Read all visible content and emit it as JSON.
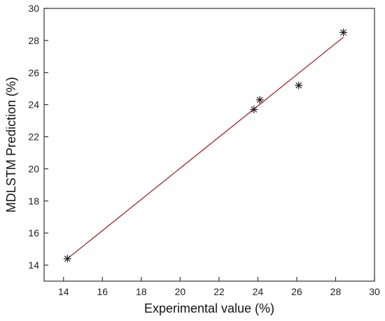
{
  "chart_data": {
    "type": "scatter",
    "title": "",
    "xlabel": "Experimental value (%)",
    "ylabel": "MDLSTM Prediction (%)",
    "xlim": [
      13,
      30
    ],
    "ylim": [
      13,
      30
    ],
    "xticks": [
      14,
      16,
      18,
      20,
      22,
      24,
      26,
      28,
      30
    ],
    "yticks": [
      14,
      16,
      18,
      20,
      22,
      24,
      26,
      28,
      30
    ],
    "grid": false,
    "legend": "none",
    "series": [
      {
        "marker": "asterisk",
        "color": "#222222",
        "points": [
          {
            "x": 14.2,
            "y": 14.4
          },
          {
            "x": 23.8,
            "y": 23.7
          },
          {
            "x": 24.1,
            "y": 24.3
          },
          {
            "x": 26.1,
            "y": 25.2
          },
          {
            "x": 28.4,
            "y": 28.5
          }
        ]
      }
    ],
    "fit_line": {
      "color": "#a52a2a",
      "from": {
        "x": 14.2,
        "y": 14.4
      },
      "to": {
        "x": 28.4,
        "y": 28.2
      }
    }
  }
}
